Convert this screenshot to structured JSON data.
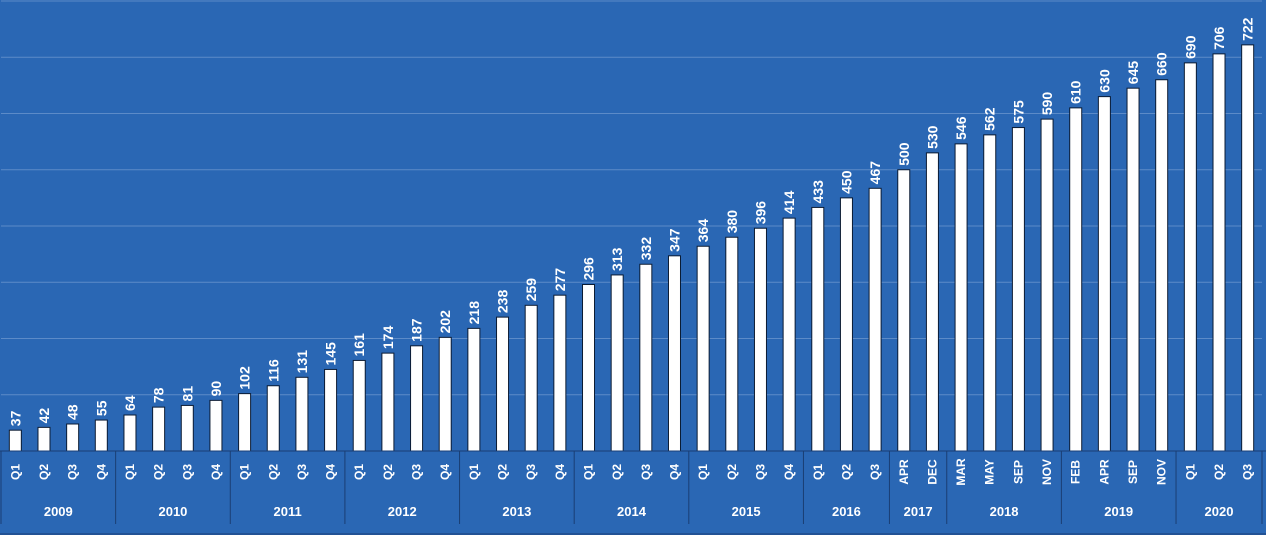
{
  "colors": {
    "background": "#2A67B4",
    "bar_fill": "#FFFFFF",
    "bar_stroke": "#0B1B33",
    "text": "#FFFFFF",
    "gridline": "#5C8BC8",
    "axis_line": "#1A3E73"
  },
  "chart_data": {
    "type": "bar",
    "title": "",
    "xlabel": "",
    "ylabel": "",
    "ylim": [
      0,
      800
    ],
    "grid": true,
    "legend": "none",
    "data_labels": true,
    "categories": [
      "Q1",
      "Q2",
      "Q3",
      "Q4",
      "Q1",
      "Q2",
      "Q3",
      "Q4",
      "Q1",
      "Q2",
      "Q3",
      "Q4",
      "Q1",
      "Q2",
      "Q3",
      "Q4",
      "Q1",
      "Q2",
      "Q3",
      "Q4",
      "Q1",
      "Q2",
      "Q3",
      "Q4",
      "Q1",
      "Q2",
      "Q3",
      "Q4",
      "Q1",
      "Q2",
      "Q3",
      "APR",
      "DEC",
      "MAR",
      "MAY",
      "SEP",
      "NOV",
      "FEB",
      "APR",
      "SEP",
      "NOV",
      "Q1",
      "Q2",
      "Q3"
    ],
    "values": [
      37,
      42,
      48,
      55,
      64,
      78,
      81,
      90,
      102,
      116,
      131,
      145,
      161,
      174,
      187,
      202,
      218,
      238,
      259,
      277,
      296,
      313,
      332,
      347,
      364,
      380,
      396,
      414,
      433,
      450,
      467,
      500,
      530,
      546,
      562,
      575,
      590,
      610,
      630,
      645,
      660,
      690,
      706,
      722
    ],
    "groups": [
      {
        "label": "2009",
        "count": 4
      },
      {
        "label": "2010",
        "count": 4
      },
      {
        "label": "2011",
        "count": 4
      },
      {
        "label": "2012",
        "count": 4
      },
      {
        "label": "2013",
        "count": 4
      },
      {
        "label": "2014",
        "count": 4
      },
      {
        "label": "2015",
        "count": 4
      },
      {
        "label": "2016",
        "count": 3
      },
      {
        "label": "2017",
        "count": 2
      },
      {
        "label": "2018",
        "count": 4
      },
      {
        "label": "2019",
        "count": 4
      },
      {
        "label": "2020",
        "count": 3
      }
    ]
  }
}
